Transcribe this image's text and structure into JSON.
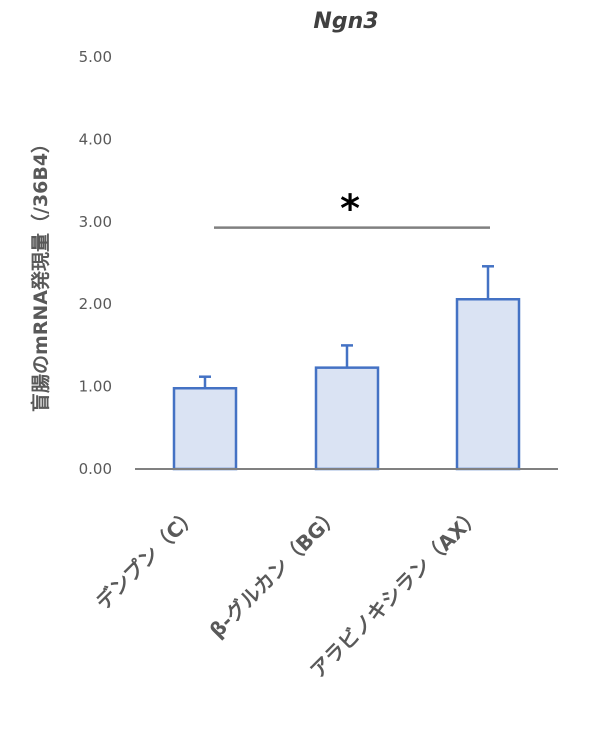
{
  "chart_data": {
    "type": "bar",
    "title": "Ngn3",
    "ylabel": "盲腸のmRNA発現量（/36B4）",
    "xlabel": "",
    "categories": [
      "デンプン（C）",
      "β-グルカン（BG）",
      "アラビノキシラン（AX）"
    ],
    "values": [
      0.98,
      1.23,
      2.06
    ],
    "errors": [
      0.14,
      0.27,
      0.4
    ],
    "ylim": [
      0,
      5
    ],
    "yticks": [
      0,
      1,
      2,
      3,
      4,
      5
    ],
    "ytick_labels": [
      "0.00",
      "1.00",
      "2.00",
      "3.00",
      "4.00",
      "5.00"
    ],
    "grid": false,
    "legend": "none",
    "significance": {
      "from": 0,
      "to": 2,
      "y": 2.93,
      "label": "*"
    },
    "colors": {
      "bar_fill": "#dae3f3",
      "bar_edge": "#4472c4",
      "axis": "#808080",
      "sig_line": "#808080"
    }
  }
}
